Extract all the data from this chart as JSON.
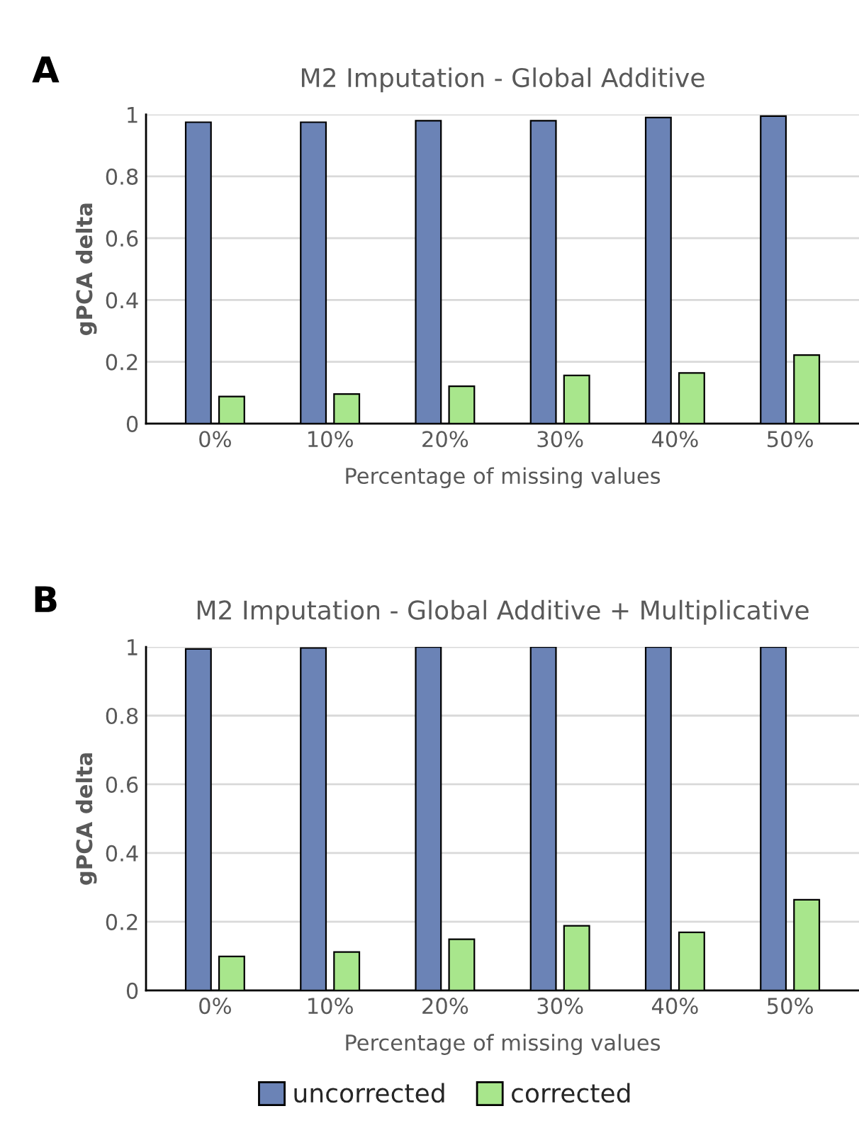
{
  "chart_data": [
    {
      "type": "bar",
      "title": "M2 Imputation - Global Additive",
      "xlabel": "Percentage of missing values",
      "ylabel": "gPCA delta",
      "annotations": [
        "A"
      ],
      "categories": [
        "0%",
        "10%",
        "20%",
        "30%",
        "40%",
        "50%"
      ],
      "series": [
        {
          "color": "#6b83b6",
          "values": [
            0.975,
            0.975,
            0.98,
            0.98,
            0.99,
            0.995
          ]
        },
        {
          "color": "#a8e68c",
          "values": [
            0.088,
            0.096,
            0.121,
            0.156,
            0.164,
            0.222
          ]
        }
      ],
      "ylim": [
        0,
        1
      ],
      "yticks": [
        0,
        0.2,
        0.4,
        0.6,
        0.8,
        1
      ],
      "grid": "y"
    },
    {
      "type": "bar",
      "title": "M2 Imputation - Global Additive + Multiplicative",
      "xlabel": "Percentage of missing values",
      "ylabel": "gPCA delta",
      "annotations": [
        "B"
      ],
      "categories": [
        "0%",
        "10%",
        "20%",
        "30%",
        "40%",
        "50%"
      ],
      "series": [
        {
          "name": "uncorrected",
          "color": "#6b83b6",
          "values": [
            0.994,
            0.997,
            1.0,
            1.0,
            1.0,
            1.0
          ]
        },
        {
          "name": "corrected",
          "color": "#a8e68c",
          "values": [
            0.099,
            0.112,
            0.149,
            0.188,
            0.169,
            0.264
          ]
        }
      ],
      "ylim": [
        0,
        1
      ],
      "yticks": [
        0,
        0.2,
        0.4,
        0.6,
        0.8,
        1
      ],
      "grid": "y",
      "legend": "bottom"
    }
  ]
}
